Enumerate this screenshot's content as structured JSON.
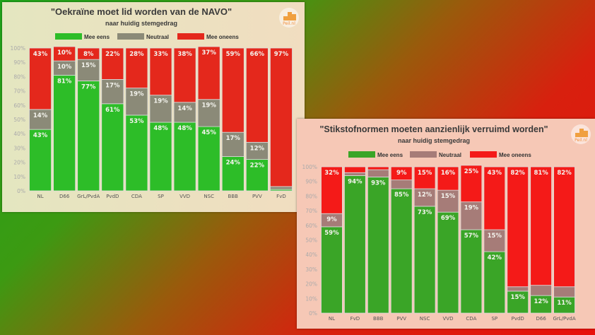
{
  "chart_data": [
    {
      "type": "bar",
      "stacked": true,
      "title": "\"Oekraïne moet lid worden van de NAVO\"",
      "subtitle": "naar huidig stemgedrag",
      "logo": "Peil.nl",
      "legend": [
        "Mee eens",
        "Neutraal",
        "Mee oneens"
      ],
      "legend_position": "top",
      "colors": [
        "#2dbd28",
        "#8b8a78",
        "#e4281c"
      ],
      "categories": [
        "NL",
        "D66",
        "GrL/PvdA",
        "PvdD",
        "CDA",
        "SP",
        "VVD",
        "NSC",
        "BBB",
        "PVV",
        "FvD"
      ],
      "series": [
        {
          "name": "Mee eens",
          "values": [
            43,
            81,
            77,
            61,
            53,
            48,
            48,
            45,
            24,
            22,
            1
          ]
        },
        {
          "name": "Neutraal",
          "values": [
            14,
            10,
            15,
            17,
            19,
            19,
            14,
            19,
            17,
            12,
            2
          ]
        },
        {
          "name": "Mee oneens",
          "values": [
            43,
            10,
            8,
            22,
            28,
            33,
            38,
            37,
            59,
            66,
            97
          ]
        }
      ],
      "yticks": [
        "0%",
        "10%",
        "20%",
        "30%",
        "40%",
        "50%",
        "60%",
        "70%",
        "80%",
        "90%",
        "100%"
      ],
      "ylim": [
        0,
        100
      ]
    },
    {
      "type": "bar",
      "stacked": true,
      "title": "\"Stikstofnormen moeten aanzienlijk verruimd worden\"",
      "subtitle": "naar huidig stemgedrag",
      "logo": "Peil.nl",
      "legend": [
        "Mee eens",
        "Neutraal",
        "Mee oneens"
      ],
      "legend_position": "top",
      "colors": [
        "#3aa527",
        "#a67c78",
        "#f41a18"
      ],
      "categories": [
        "NL",
        "FvD",
        "BBB",
        "PVV",
        "NSC",
        "VVD",
        "CDA",
        "SP",
        "PvdD",
        "D66",
        "GrL/PvdA"
      ],
      "series": [
        {
          "name": "Mee eens",
          "values": [
            59,
            94,
            93,
            85,
            73,
            69,
            57,
            42,
            15,
            12,
            11
          ]
        },
        {
          "name": "Neutraal",
          "values": [
            9,
            2,
            5,
            6,
            12,
            15,
            19,
            15,
            3,
            7,
            7
          ]
        },
        {
          "name": "Mee oneens",
          "values": [
            32,
            4,
            2,
            9,
            15,
            16,
            25,
            43,
            82,
            81,
            82
          ]
        }
      ],
      "yticks": [
        "0%",
        "10%",
        "20%",
        "30%",
        "40%",
        "50%",
        "60%",
        "70%",
        "80%",
        "90%",
        "100%"
      ],
      "ylim": [
        0,
        100
      ]
    }
  ]
}
